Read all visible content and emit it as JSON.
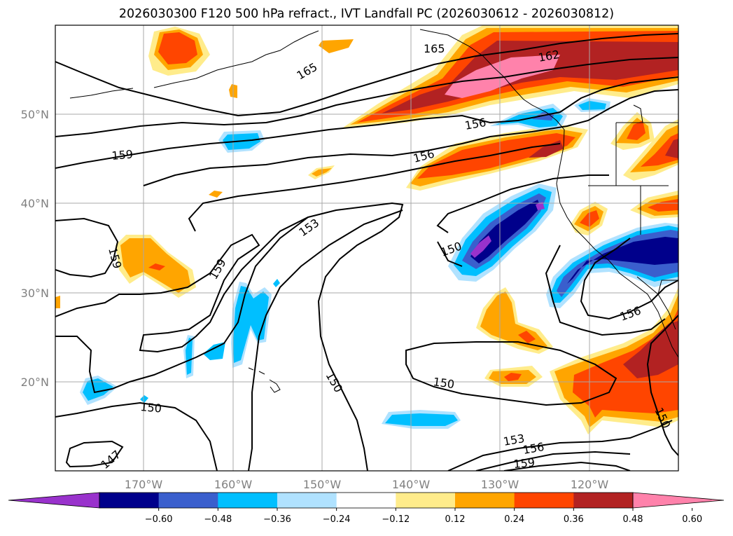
{
  "title": "2026030300 F120 500 hPa refract., IVT Landfall PC (2026030612 - 2026030812)",
  "map": {
    "lon_labels": [
      "170°W",
      "160°W",
      "150°W",
      "140°W",
      "130°W",
      "120°W"
    ],
    "lat_labels": [
      "50°N",
      "40°N",
      "30°N",
      "20°N"
    ],
    "contour_labels": [
      "165",
      "162",
      "159",
      "156",
      "153",
      "150",
      "147"
    ]
  },
  "legend": {
    "tick_labels": [
      "−0.60",
      "−0.48",
      "−0.36",
      "−0.24",
      "−0.12",
      "0.12",
      "0.24",
      "0.36",
      "0.48",
      "0.60"
    ],
    "colors": [
      "#9932cc",
      "#00008b",
      "#3a5fcd",
      "#00bfff",
      "#b0e2ff",
      "#ffffff",
      "#ffec8b",
      "#ffa500",
      "#ff4500",
      "#b22222",
      "#ff82ab"
    ]
  },
  "colors": {
    "purple": "#9932cc",
    "navy": "#00008b",
    "royal": "#3a5fcd",
    "sky": "#00bfff",
    "lightblue": "#b0e2ff",
    "yellow": "#ffec8b",
    "orange": "#ffa500",
    "redorange": "#ff4500",
    "firebrick": "#b22222",
    "pink": "#ff82ab"
  }
}
